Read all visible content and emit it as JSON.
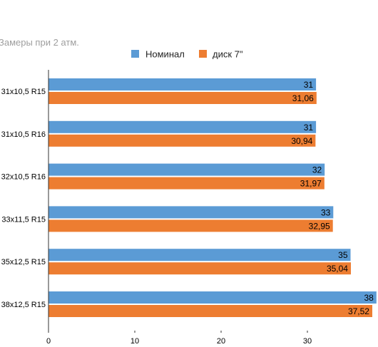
{
  "chart_data": {
    "type": "bar",
    "orientation": "horizontal",
    "title": "Замеры при 2 атм.",
    "categories": [
      "31x10,5 R15",
      "31x10,5 R16",
      "32x10,5 R16",
      "33x11,5 R15",
      "35x12,5 R15",
      "38x12,5 R15"
    ],
    "series": [
      {
        "name": "Номинал",
        "color": "#5b9bd5",
        "values": [
          31,
          31,
          32,
          33,
          35,
          38
        ],
        "labels": [
          "31",
          "31",
          "32",
          "33",
          "35",
          "38"
        ]
      },
      {
        "name": "диск 7\"",
        "color": "#ed7d31",
        "values": [
          31.06,
          30.94,
          31.97,
          32.95,
          35.04,
          37.52
        ],
        "labels": [
          "31,06",
          "30,94",
          "31,97",
          "32,95",
          "35,04",
          "37,52"
        ]
      }
    ],
    "xlim": [
      0,
      38
    ],
    "xticks": [
      0,
      10,
      20,
      30
    ],
    "grid": false,
    "legend": "top",
    "xlabel": "",
    "ylabel": ""
  }
}
